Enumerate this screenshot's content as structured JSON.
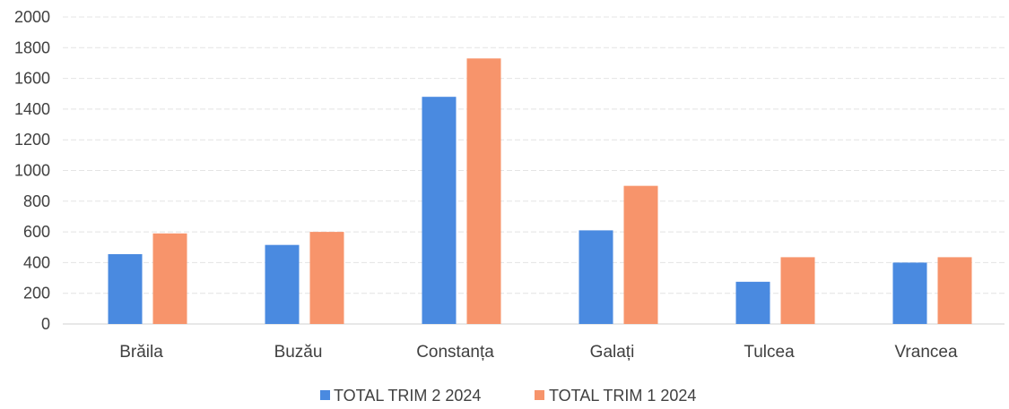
{
  "chart_data": {
    "type": "bar",
    "categories": [
      "Brăila",
      "Buzău",
      "Constanța",
      "Galați",
      "Tulcea",
      "Vrancea"
    ],
    "series": [
      {
        "name": "TOTAL TRIM 2 2024",
        "color": "#4a8ae0",
        "values": [
          455,
          515,
          1480,
          610,
          275,
          400
        ]
      },
      {
        "name": "TOTAL TRIM 1 2024",
        "color": "#f7946b",
        "values": [
          590,
          600,
          1730,
          900,
          435,
          435
        ]
      }
    ],
    "title": "",
    "xlabel": "",
    "ylabel": "",
    "ylim": [
      0,
      2000
    ],
    "yticks": [
      0,
      200,
      400,
      600,
      800,
      1000,
      1200,
      1400,
      1600,
      1800,
      2000
    ],
    "grid": true,
    "legend_position": "bottom"
  }
}
